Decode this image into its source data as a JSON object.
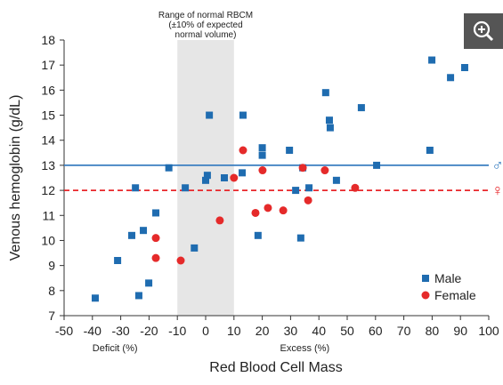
{
  "chart_data": {
    "type": "scatter",
    "x_label": "Red Blood Cell Mass",
    "y_label": "Venous hemoglobin (g/dL)",
    "xlim": [
      -50,
      100
    ],
    "xticks": [
      -50,
      -40,
      -30,
      -20,
      -10,
      0,
      10,
      20,
      30,
      40,
      50,
      60,
      70,
      80,
      90,
      100
    ],
    "ylim": [
      7,
      18
    ],
    "yticks": [
      7,
      8,
      9,
      10,
      11,
      12,
      13,
      14,
      15,
      16,
      17,
      18
    ],
    "legend": "lower right",
    "band": {
      "xrange": [
        -10,
        10
      ],
      "color": "#e6e6e6",
      "label": [
        "Range of normal RBCM",
        "(±10% of expected",
        "normal volume)"
      ]
    },
    "reference_lines": [
      {
        "value": 13,
        "color": "#3a7fc1",
        "style": "solid",
        "label": "♂"
      },
      {
        "value": 12,
        "color": "#e8262a",
        "style": "dashed",
        "label": "♀"
      }
    ],
    "axis_notes": [
      "Deficit (%)",
      "Excess (%)"
    ],
    "series": [
      {
        "name": "Male",
        "color": "#1f6cb0",
        "marker": "square",
        "x": [
          -39,
          -31.1,
          -26.1,
          -24.8,
          -23.6,
          -22,
          -20.1,
          -17.6,
          -13,
          -7.2,
          -4,
          0,
          0.6,
          1.3,
          6.6,
          12.9,
          13.2,
          18.5,
          20,
          20,
          29.6,
          31.8,
          33.6,
          34.3,
          36.5,
          42.4,
          43.7,
          44,
          46.2,
          55,
          60.4,
          79.2,
          79.9,
          86.5,
          91.5
        ],
        "values": [
          7.7,
          9.2,
          10.2,
          12.1,
          7.8,
          10.4,
          8.3,
          11.1,
          12.9,
          12.1,
          9.7,
          12.4,
          12.6,
          15.0,
          12.5,
          12.7,
          15.0,
          10.2,
          13.7,
          13.4,
          13.6,
          12.0,
          10.1,
          12.9,
          12.1,
          15.9,
          14.8,
          14.5,
          12.4,
          15.3,
          13.0,
          13.6,
          17.2,
          16.5,
          16.9
        ]
      },
      {
        "name": "Female",
        "color": "#e52a2a",
        "marker": "circle",
        "x": [
          -17.6,
          -17.6,
          -8.8,
          5,
          10,
          13.2,
          17.6,
          20.1,
          22,
          27.4,
          34.3,
          36.2,
          42.1,
          52.8
        ],
        "values": [
          10.1,
          9.3,
          9.2,
          10.8,
          12.5,
          13.6,
          11.1,
          12.8,
          11.3,
          11.2,
          12.9,
          11.6,
          12.8,
          12.1
        ]
      }
    ]
  }
}
